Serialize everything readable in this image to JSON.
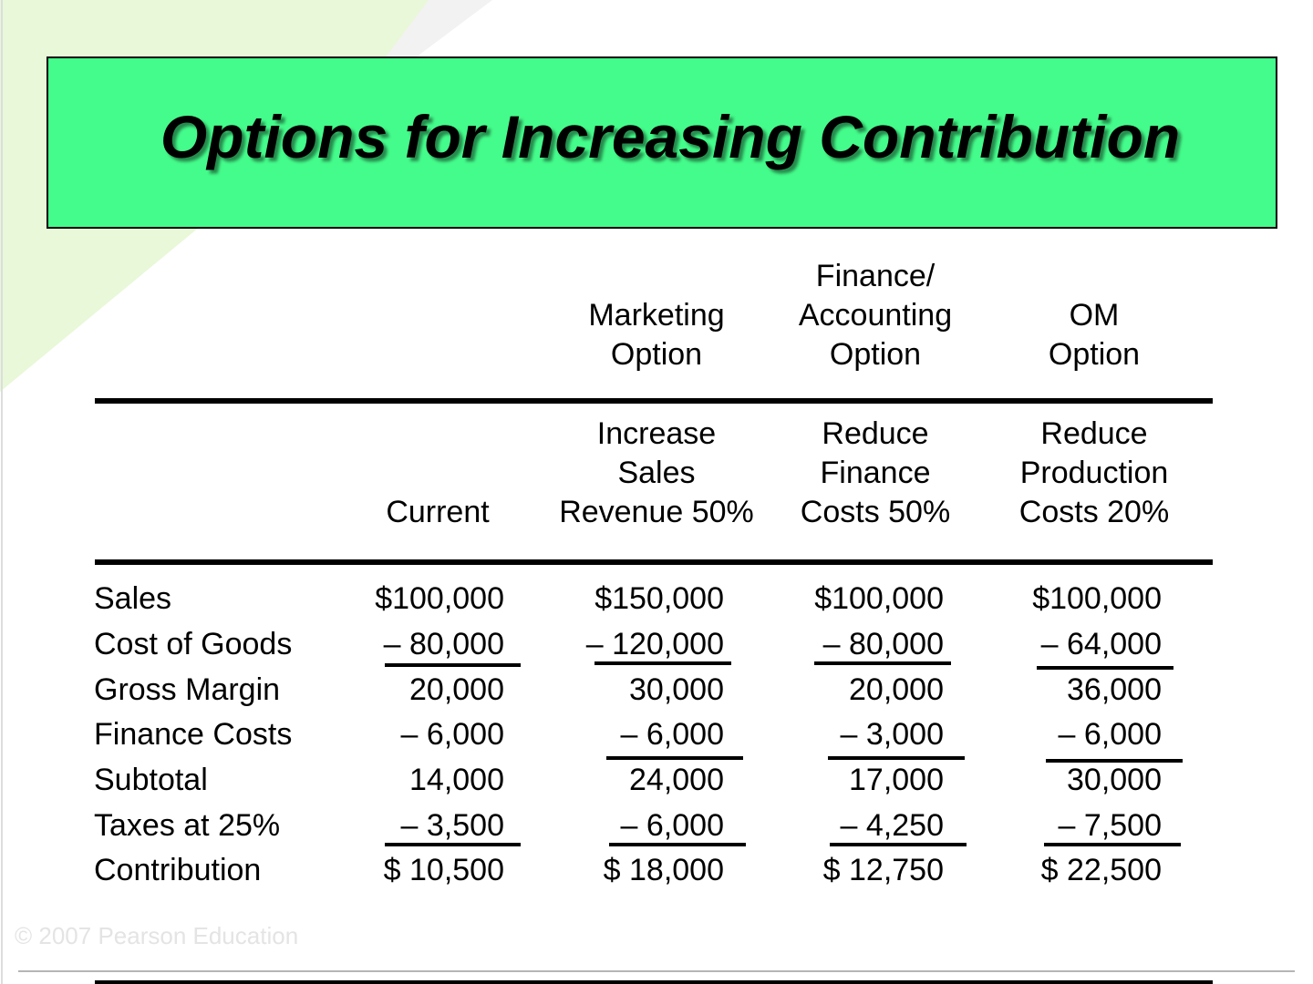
{
  "title": "Options for Increasing Contribution",
  "colors": {
    "title_bg": "#44fc8b",
    "accent_triangle": "#e8f8d8"
  },
  "option_headers": {
    "marketing": [
      "Marketing",
      "Option"
    ],
    "finance": [
      "Finance/",
      "Accounting",
      "Option"
    ],
    "om": [
      "OM",
      "Option"
    ]
  },
  "action_headers": {
    "current": [
      "Current"
    ],
    "marketing": [
      "Increase",
      "Sales",
      "Revenue 50%"
    ],
    "finance": [
      "Reduce",
      "Finance",
      "Costs 50%"
    ],
    "om": [
      "Reduce",
      "Production",
      "Costs 20%"
    ]
  },
  "rows": [
    {
      "label": "Sales",
      "values": [
        "$100,000",
        "$150,000",
        "$100,000",
        "$100,000"
      ]
    },
    {
      "label": "Cost of Goods",
      "values": [
        "– 80,000",
        "– 120,000",
        "– 80,000",
        "– 64,000"
      ]
    },
    {
      "label": "Gross Margin",
      "values": [
        "20,000",
        "30,000",
        "20,000",
        "36,000"
      ]
    },
    {
      "label": "Finance Costs",
      "values": [
        "– 6,000",
        "– 6,000",
        "– 3,000",
        "– 6,000"
      ]
    },
    {
      "label": "Subtotal",
      "values": [
        "14,000",
        "24,000",
        "17,000",
        "30,000"
      ]
    },
    {
      "label": "Taxes at 25%",
      "values": [
        "– 3,500",
        "– 6,000",
        "– 4,250",
        "– 7,500"
      ]
    },
    {
      "label": "Contribution",
      "values": [
        "$ 10,500",
        "$ 18,000",
        "$ 12,750",
        "$ 22,500"
      ]
    }
  ],
  "copyright": "© 2007 Pearson Education"
}
